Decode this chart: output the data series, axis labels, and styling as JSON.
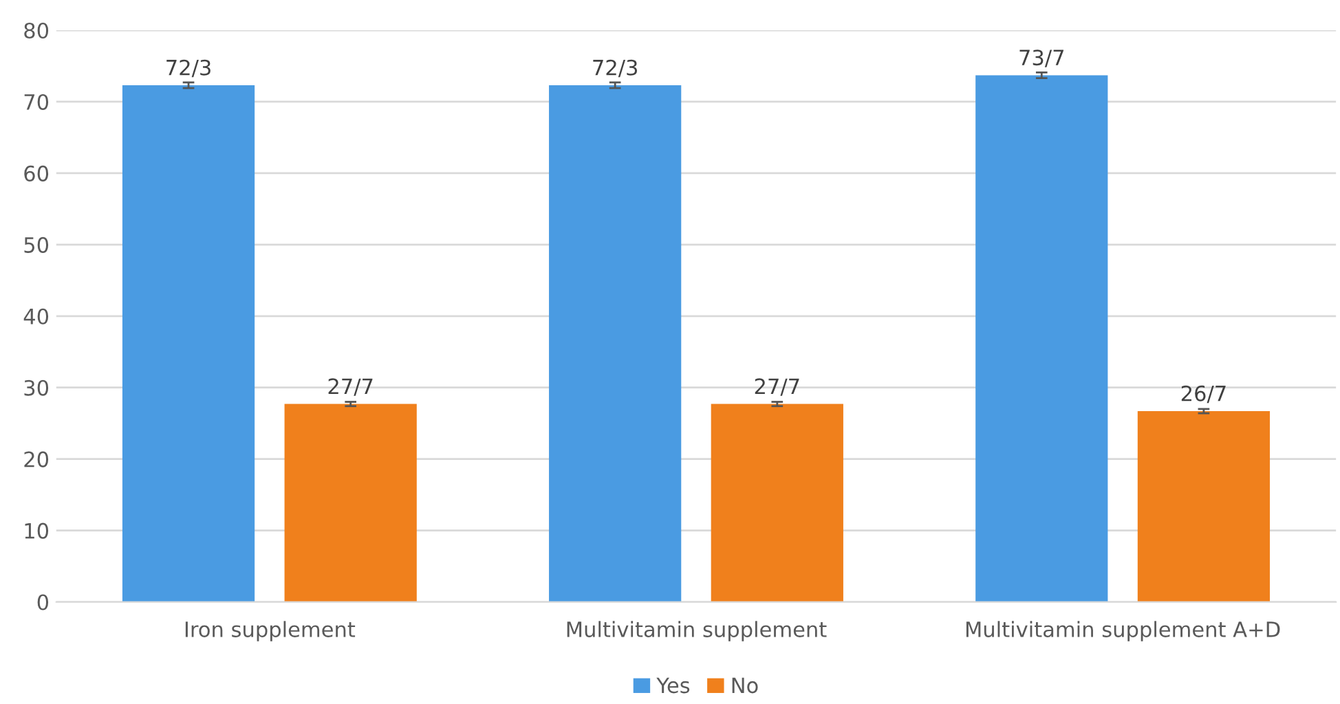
{
  "chart_data": {
    "type": "bar",
    "categories": [
      "Iron supplement",
      "Multivitamin supplement",
      "Multivitamin supplement A+D"
    ],
    "series": [
      {
        "name": "Yes",
        "color": "#4a9be2",
        "values": [
          72.3,
          72.3,
          73.7
        ],
        "errors": [
          0.4,
          0.4,
          0.4
        ],
        "value_labels": [
          "72/3",
          "72/3",
          "73/7"
        ]
      },
      {
        "name": "No",
        "color": "#f0801c",
        "values": [
          27.7,
          27.7,
          26.7
        ],
        "errors": [
          0.3,
          0.3,
          0.3
        ],
        "value_labels": [
          "27/7",
          "27/7",
          "26/7"
        ]
      }
    ],
    "ylim": [
      0,
      80
    ],
    "yticks": [
      0,
      10,
      20,
      30,
      40,
      50,
      60,
      70,
      80
    ],
    "grid": "y",
    "legend": "bottom"
  }
}
